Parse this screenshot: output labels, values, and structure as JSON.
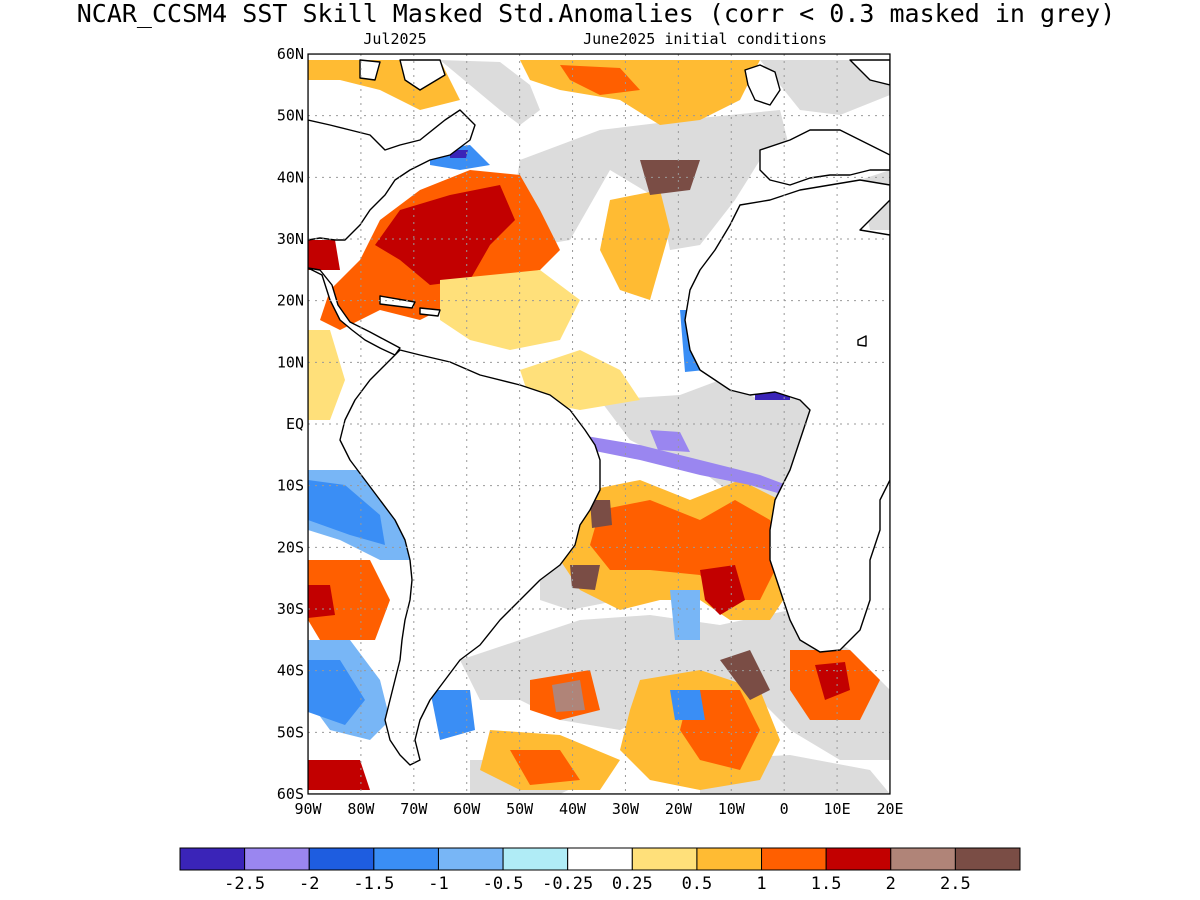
{
  "title": "NCAR_CCSM4  SST Skill Masked Std.Anomalies (corr < 0.3 masked in grey)",
  "valid_label": "Jul2025",
  "ic_label": "June2025 initial conditions",
  "map": {
    "lat_ticks": [
      "60N",
      "50N",
      "40N",
      "30N",
      "20N",
      "10N",
      "EQ",
      "10S",
      "20S",
      "30S",
      "40S",
      "50S",
      "60S"
    ],
    "lon_ticks": [
      "90W",
      "80W",
      "70W",
      "60W",
      "50W",
      "40W",
      "30W",
      "20W",
      "10W",
      "0",
      "10E",
      "20E"
    ],
    "lat_range": [
      -60,
      60
    ],
    "lon_range": [
      -90,
      20
    ],
    "grid": "dotted",
    "mask_color": "#dcdcdc",
    "land_color": "#ffffff",
    "coast_color": "#000000"
  },
  "colorbar": {
    "colors": [
      "#3a24b8",
      "#9a86f0",
      "#1e5de0",
      "#3a8ef5",
      "#78b6f6",
      "#b0ecf6",
      "#ffffff",
      "#ffe07a",
      "#ffbb33",
      "#ff5f00",
      "#c20000",
      "#b08478",
      "#7a4d45"
    ],
    "labels": [
      "-2.5",
      "-2",
      "-1.5",
      "-1",
      "-0.5",
      "-0.25",
      "0.25",
      "0.5",
      "1",
      "1.5",
      "2",
      "2.5"
    ]
  },
  "regions": [
    {
      "name": "north-atlantic-warm-core",
      "color": "#c20000"
    },
    {
      "name": "gulf-stream-band",
      "color": "#ff5f00"
    },
    {
      "name": "tropical-atlantic-mild",
      "color": "#ffe07a"
    },
    {
      "name": "equatorial-cool-tongue",
      "color": "#9a86f0"
    },
    {
      "name": "south-atlantic-warm",
      "color": "#ff5f00"
    },
    {
      "name": "southern-ocean-warm",
      "color": "#c20000"
    },
    {
      "name": "pacific-cool-tongue",
      "color": "#3a8ef5"
    },
    {
      "name": "masked-low-skill",
      "color": "#dcdcdc"
    }
  ]
}
